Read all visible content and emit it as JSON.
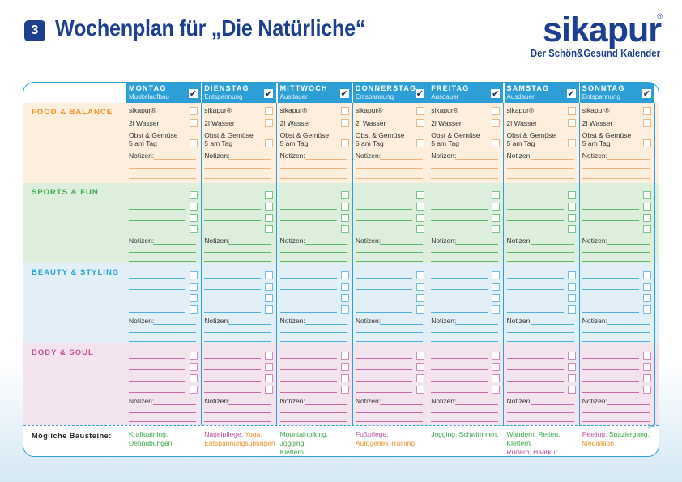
{
  "header": {
    "number": "3",
    "title": "Wochenplan für „Die Natürliche“",
    "logo": "sikapur",
    "logo_reg": "®",
    "logo_sub": "Der Schön&Gesund Kalender"
  },
  "check_mark": "✔",
  "days": [
    {
      "name": "MONTAG",
      "focus": "Muskelaufbau"
    },
    {
      "name": "DIENSTAG",
      "focus": "Entspannung"
    },
    {
      "name": "MITTWOCH",
      "focus": "Ausdauer"
    },
    {
      "name": "DONNERSTAG",
      "focus": "Entspannung"
    },
    {
      "name": "FREITAG",
      "focus": "Ausdauer"
    },
    {
      "name": "SAMSTAG",
      "focus": "Ausdauer"
    },
    {
      "name": "SONNTAG",
      "focus": "Entspannung"
    }
  ],
  "sections": {
    "food": "FOOD & BALANCE",
    "sports": "SPORTS & FUN",
    "beauty": "BEAUTY & STYLING",
    "body": "BODY & SOUL"
  },
  "food_items": {
    "sikapur": "sikapur®",
    "water": "2l Wasser",
    "fruit_1": "Obst & Gemüse",
    "fruit_2": "5 am Tag"
  },
  "notes_label": "Notizen:",
  "footer": {
    "label": "Mögliche Bausteine:",
    "cells": [
      [
        {
          "t": "Krafttraining,",
          "c": "green"
        },
        {
          "t": "Dehnübungen",
          "c": "green"
        }
      ],
      [
        {
          "t": "Nagelpflege, ",
          "c": "pink"
        },
        {
          "t": "Yoga,",
          "c": "orange"
        },
        {
          "t": "Entspannungsübungen",
          "c": "orange"
        }
      ],
      [
        {
          "t": "Mountainbiking, Jogging,",
          "c": "green"
        },
        {
          "t": "Klettern",
          "c": "green"
        }
      ],
      [
        {
          "t": "Fußpflege,",
          "c": "pink"
        },
        {
          "t": "Autogenes Training",
          "c": "orange"
        }
      ],
      [
        {
          "t": "Jogging, Schwimmen,",
          "c": "green"
        }
      ],
      [
        {
          "t": "Wandern, Reiten, Klettern,",
          "c": "green"
        },
        {
          "t": "Rudern, Haarkur",
          "c": "pink"
        }
      ],
      [
        {
          "t": "Peeling, ",
          "c": "pink"
        },
        {
          "t": "Spaziergang,",
          "c": "green"
        },
        {
          "t": "Meditation",
          "c": "orange"
        }
      ]
    ]
  },
  "colors": {
    "primary": "#1e3f8f",
    "header_blue": "#2d9fd6",
    "food": "#f0922b",
    "sports": "#39a84a",
    "beauty": "#2d9fd6",
    "body": "#c04f9a"
  }
}
